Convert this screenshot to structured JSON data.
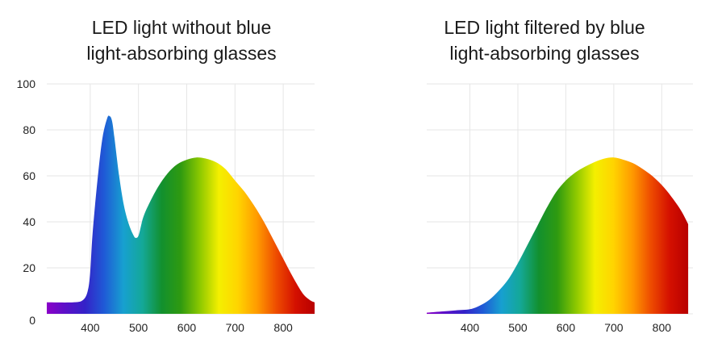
{
  "chart_data": [
    {
      "type": "area",
      "title": "LED light without blue light-absorbing glasses",
      "title_lines": [
        "LED light without blue",
        "light-absorbing glasses"
      ],
      "xlabel": "",
      "ylabel": "",
      "xlim": [
        310,
        865
      ],
      "ylim": [
        0,
        100
      ],
      "xticks": [
        400,
        500,
        600,
        700,
        800
      ],
      "yticks": [
        0,
        20,
        40,
        60,
        80,
        100
      ],
      "grid": true,
      "fill": "visible-spectrum gradient",
      "x": [
        310,
        365,
        385,
        395,
        400,
        405,
        415,
        425,
        435,
        440,
        445,
        450,
        460,
        470,
        480,
        490,
        495,
        500,
        505,
        510,
        520,
        540,
        560,
        580,
        600,
        620,
        640,
        660,
        680,
        700,
        720,
        740,
        760,
        780,
        800,
        820,
        840,
        855,
        865
      ],
      "y": [
        5,
        5,
        6,
        10,
        18,
        35,
        58,
        76,
        85,
        86,
        84,
        77,
        60,
        47,
        39,
        34,
        33,
        34,
        38,
        42,
        47,
        55,
        61,
        65,
        67,
        68,
        67.5,
        66,
        63,
        58,
        53,
        47,
        40,
        32,
        24,
        16,
        9,
        6,
        5
      ]
    },
    {
      "type": "area",
      "title": "LED light filtered by blue light-absorbing glasses",
      "title_lines": [
        "LED light filtered by blue",
        "light-absorbing glasses"
      ],
      "xlabel": "",
      "ylabel": "",
      "xlim": [
        310,
        865
      ],
      "ylim": [
        0,
        100
      ],
      "xticks": [
        400,
        500,
        600,
        700,
        800
      ],
      "yticks": [
        0,
        20,
        40,
        60,
        80,
        100
      ],
      "grid": true,
      "fill": "visible-spectrum gradient",
      "x": [
        310,
        340,
        370,
        400,
        420,
        440,
        460,
        480,
        500,
        520,
        540,
        560,
        580,
        600,
        620,
        640,
        660,
        680,
        700,
        720,
        740,
        760,
        780,
        800,
        820,
        840,
        855
      ],
      "y": [
        0.5,
        1,
        1.5,
        2,
        3.5,
        6,
        10,
        15,
        22,
        30,
        38,
        46,
        53,
        58,
        61.5,
        64,
        66,
        67.5,
        68,
        67,
        65.5,
        63,
        60,
        56,
        51,
        45,
        39
      ]
    }
  ],
  "colors": {
    "spectrum": [
      "#8a00c8",
      "#5a10c8",
      "#3422c8",
      "#1f5ad6",
      "#17a0d0",
      "#14a898",
      "#12902e",
      "#2f9a10",
      "#8cc800",
      "#f4ef00",
      "#ffd400",
      "#ff9a00",
      "#ee4c00",
      "#d41000",
      "#b80000"
    ],
    "grid": "#e6e6e6"
  }
}
